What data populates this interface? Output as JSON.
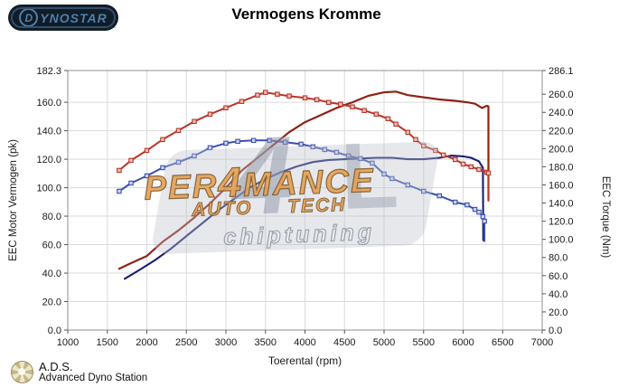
{
  "header": {
    "title": "Vermogens Kromme",
    "logo_text_first": "D",
    "logo_text_rest": "ynostar",
    "logo_subtext": "…"
  },
  "watermark": {
    "line1_pre": "PER",
    "line1_num": "4",
    "line1_post": "MANCE",
    "line2a": "AUTO",
    "line2b": "TECH",
    "line3": "chiptuning",
    "glyph1": "4",
    "glyph2": "L",
    "accent_color": "#e59d4f"
  },
  "footer": {
    "ads_abbr": "A.D.S.",
    "ads_full": "Advanced Dyno Station"
  },
  "chart_data": {
    "type": "line",
    "title": "Vermogens Kromme",
    "xlabel": "Toerental (rpm)",
    "ylabel_left": "EEC Motor Vermogen (pk)",
    "ylabel_right": "EEC Torque (Nm)",
    "x_range": [
      1000,
      7000
    ],
    "left_max": 182.3,
    "right_max": 286.1,
    "grid": true,
    "x_ticks": [
      1000,
      1500,
      2000,
      2500,
      3000,
      3500,
      4000,
      4500,
      5000,
      5500,
      6000,
      6500,
      7000
    ],
    "left_ticks": [
      182.3,
      160,
      140,
      120,
      100,
      80,
      60,
      40,
      20,
      0
    ],
    "right_ticks": [
      286.1,
      260,
      240,
      220,
      200,
      180,
      160,
      140,
      120,
      100,
      80,
      60,
      40,
      20,
      0
    ],
    "colors": {
      "grid": "#dadada",
      "border": "#8f8f8f",
      "tick_text": "#1a1a1a",
      "tuned_power": "#8e2316",
      "tuned_torque": "#b8352a",
      "original_power": "#1a1e6e",
      "original_torque": "#3b4fae"
    },
    "series": [
      {
        "id": "original-power",
        "axis": "left",
        "color": "#1a1e6e",
        "width": 2.1,
        "markers": false,
        "points": [
          [
            1720,
            36
          ],
          [
            1900,
            42
          ],
          [
            2100,
            49
          ],
          [
            2300,
            57
          ],
          [
            2500,
            66
          ],
          [
            2700,
            75
          ],
          [
            2900,
            84
          ],
          [
            3100,
            92
          ],
          [
            3300,
            100
          ],
          [
            3500,
            106
          ],
          [
            3700,
            111
          ],
          [
            3900,
            115
          ],
          [
            4100,
            118
          ],
          [
            4300,
            119.5
          ],
          [
            4500,
            120
          ],
          [
            4700,
            120.5
          ],
          [
            4900,
            121
          ],
          [
            5100,
            121
          ],
          [
            5300,
            120
          ],
          [
            5500,
            120
          ],
          [
            5700,
            121
          ],
          [
            5850,
            122.5
          ],
          [
            6000,
            122
          ],
          [
            6100,
            121
          ],
          [
            6200,
            118.5
          ],
          [
            6250,
            114
          ],
          [
            6255,
            63
          ]
        ]
      },
      {
        "id": "original-torque",
        "axis": "right",
        "color": "#3b4fae",
        "width": 2,
        "markers": true,
        "marker_fill": "#ccd4ee",
        "points": [
          [
            1650,
            153
          ],
          [
            1800,
            162
          ],
          [
            2000,
            170
          ],
          [
            2200,
            179
          ],
          [
            2400,
            185
          ],
          [
            2600,
            192
          ],
          [
            2800,
            201
          ],
          [
            3000,
            206
          ],
          [
            3150,
            208
          ],
          [
            3350,
            209
          ],
          [
            3550,
            209
          ],
          [
            3750,
            207
          ],
          [
            3950,
            205
          ],
          [
            4100,
            202
          ],
          [
            4250,
            199
          ],
          [
            4400,
            196
          ],
          [
            4550,
            192
          ],
          [
            4700,
            189
          ],
          [
            4850,
            184
          ],
          [
            5000,
            172
          ],
          [
            5100,
            167
          ],
          [
            5300,
            160
          ],
          [
            5500,
            153
          ],
          [
            5700,
            148
          ],
          [
            5900,
            141
          ],
          [
            6050,
            138
          ],
          [
            6150,
            133
          ],
          [
            6200,
            130
          ],
          [
            6250,
            125
          ],
          [
            6270,
            120
          ],
          [
            6270,
            98
          ]
        ]
      },
      {
        "id": "tuned-power",
        "axis": "left",
        "color": "#8e2316",
        "width": 2.2,
        "markers": false,
        "points": [
          [
            1650,
            43
          ],
          [
            1800,
            47
          ],
          [
            2000,
            52
          ],
          [
            2200,
            62
          ],
          [
            2400,
            70
          ],
          [
            2600,
            79
          ],
          [
            2800,
            89
          ],
          [
            3000,
            100
          ],
          [
            3200,
            112
          ],
          [
            3400,
            121
          ],
          [
            3600,
            130
          ],
          [
            3800,
            139
          ],
          [
            4000,
            146
          ],
          [
            4200,
            151
          ],
          [
            4400,
            156
          ],
          [
            4600,
            160
          ],
          [
            4800,
            164.5
          ],
          [
            5000,
            167
          ],
          [
            5150,
            167.5
          ],
          [
            5300,
            165
          ],
          [
            5500,
            163.5
          ],
          [
            5700,
            162
          ],
          [
            5900,
            161
          ],
          [
            6050,
            160
          ],
          [
            6150,
            159
          ],
          [
            6240,
            156
          ],
          [
            6300,
            157.5
          ],
          [
            6320,
            157
          ],
          [
            6320,
            91
          ]
        ]
      },
      {
        "id": "tuned-torque",
        "axis": "right",
        "color": "#b8352a",
        "width": 2,
        "markers": true,
        "marker_fill": "#ecc0b8",
        "points": [
          [
            1650,
            176
          ],
          [
            1800,
            187
          ],
          [
            2000,
            198
          ],
          [
            2200,
            210
          ],
          [
            2400,
            220
          ],
          [
            2600,
            230
          ],
          [
            2800,
            238
          ],
          [
            3000,
            245
          ],
          [
            3200,
            252
          ],
          [
            3400,
            259
          ],
          [
            3500,
            262
          ],
          [
            3650,
            260
          ],
          [
            3800,
            258
          ],
          [
            4000,
            256
          ],
          [
            4150,
            254
          ],
          [
            4300,
            251
          ],
          [
            4450,
            249
          ],
          [
            4600,
            246
          ],
          [
            4750,
            242
          ],
          [
            4900,
            238
          ],
          [
            5050,
            233
          ],
          [
            5150,
            227
          ],
          [
            5300,
            218
          ],
          [
            5400,
            210
          ],
          [
            5500,
            203
          ],
          [
            5650,
            198
          ],
          [
            5750,
            193
          ],
          [
            5900,
            188
          ],
          [
            6000,
            183
          ],
          [
            6100,
            180
          ],
          [
            6200,
            177
          ],
          [
            6300,
            174
          ],
          [
            6320,
            173
          ],
          [
            6320,
            143
          ]
        ]
      }
    ]
  }
}
